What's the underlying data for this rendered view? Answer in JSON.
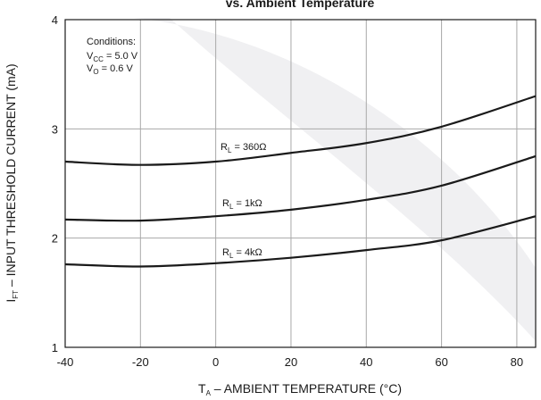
{
  "chart_data": {
    "type": "line",
    "title": "vs. Ambient Temperature",
    "xlabel": {
      "main": "T",
      "sub": "A",
      "rest": " – AMBIENT TEMPERATURE (°C)"
    },
    "ylabel": {
      "main": "I",
      "sub": "FT",
      "rest": " – INPUT THRESHOLD CURRENT (mA)"
    },
    "xlim": [
      -40,
      85
    ],
    "ylim": [
      1,
      4
    ],
    "x_ticks": [
      -40,
      -20,
      0,
      20,
      40,
      60,
      80
    ],
    "y_ticks": [
      1,
      2,
      3,
      4
    ],
    "grid": true,
    "conditions": {
      "heading": "Conditions:",
      "lines": [
        {
          "main": "V",
          "sub": "CC",
          "rest": " = 5.0 V"
        },
        {
          "main": "V",
          "sub": "O",
          "rest": " = 0.6 V"
        }
      ]
    },
    "x": [
      -40,
      -20,
      0,
      20,
      40,
      60,
      85
    ],
    "series": [
      {
        "label": {
          "main": "R",
          "sub": "L",
          "rest": " = 360Ω"
        },
        "values": [
          2.7,
          2.67,
          2.7,
          2.78,
          2.87,
          3.02,
          3.3
        ]
      },
      {
        "label": {
          "main": "R",
          "sub": "L",
          "rest": " = 1kΩ"
        },
        "values": [
          2.17,
          2.16,
          2.2,
          2.26,
          2.35,
          2.48,
          2.75
        ]
      },
      {
        "label": {
          "main": "R",
          "sub": "L",
          "rest": " = 4kΩ"
        },
        "values": [
          1.76,
          1.74,
          1.77,
          1.82,
          1.89,
          1.98,
          2.2
        ]
      }
    ],
    "colors": {
      "line": "#1a1a1a",
      "grid": "#a8a8a8",
      "watermark": "#f0f0f2"
    }
  }
}
